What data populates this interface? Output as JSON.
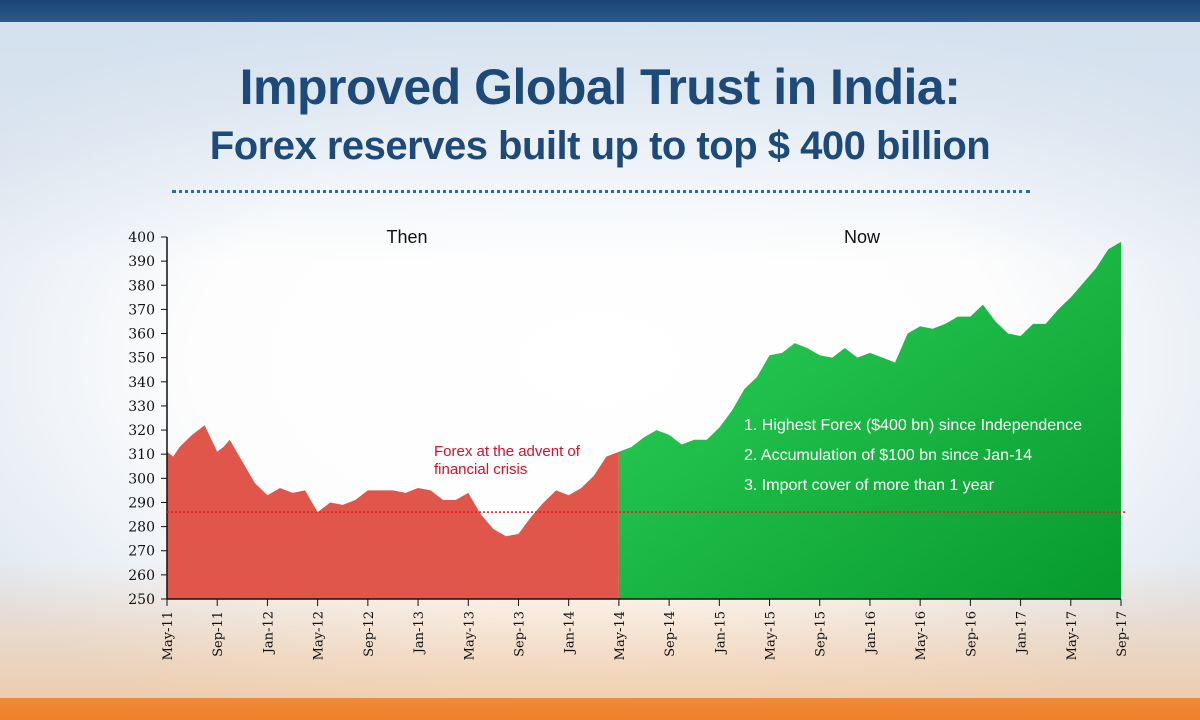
{
  "header": {
    "title_line1": "Improved Global Trust in India:",
    "title_line2": "Forex reserves built up to top  $ 400 billion"
  },
  "colors": {
    "then_area": "#e0564b",
    "now_area_light": "#2ed35a",
    "now_area_dark": "#079a2e",
    "reference_line": "#e01e2a",
    "annotation_text": "#d8102a",
    "title": "#1d4a78"
  },
  "chart_data": {
    "type": "area",
    "title": "Improved Global Trust in India: Forex reserves built up to top $ 400 billion",
    "xlabel": "",
    "ylabel": "",
    "ylim": [
      250,
      400
    ],
    "yticks": [
      250,
      260,
      270,
      280,
      290,
      300,
      310,
      320,
      330,
      340,
      350,
      360,
      370,
      380,
      390,
      400
    ],
    "xticks": [
      "May-11",
      "Sep-11",
      "Jan-12",
      "May-12",
      "Sep-12",
      "Jan-13",
      "May-13",
      "Sep-13",
      "Jan-14",
      "May-14",
      "Sep-14",
      "Jan-15",
      "May-15",
      "Sep-15",
      "Jan-16",
      "May-16",
      "Sep-16",
      "Jan-17",
      "May-17",
      "Sep-17"
    ],
    "series": [
      {
        "name": "Then",
        "label": "Then",
        "x": [
          0,
          0.5,
          1,
          2,
          3,
          4,
          4.5,
          5,
          6,
          7,
          8,
          9,
          10,
          11,
          12,
          13,
          14,
          15,
          16,
          17,
          18,
          19,
          20,
          21,
          22,
          23,
          24,
          25,
          26,
          27,
          28,
          29,
          30,
          31,
          32,
          33,
          34,
          35,
          36
        ],
        "values": [
          311,
          309,
          313,
          318,
          322,
          311,
          313,
          316,
          307,
          298,
          293,
          296,
          294,
          295,
          286,
          290,
          289,
          291,
          295,
          295,
          295,
          294,
          296,
          295,
          291,
          291,
          294,
          285,
          279,
          276,
          277,
          284,
          290,
          295,
          293,
          296,
          301,
          309,
          311
        ]
      },
      {
        "name": "Now",
        "label": "Now",
        "x": [
          36,
          37,
          38,
          39,
          40,
          41,
          42,
          43,
          44,
          45,
          46,
          47,
          48,
          49,
          50,
          51,
          52,
          53,
          54,
          55,
          56,
          57,
          58,
          59,
          60,
          61,
          62,
          63,
          64,
          65,
          66,
          67,
          68,
          69,
          70,
          71,
          72,
          73,
          74,
          75,
          76
        ],
        "values": [
          311,
          313,
          317,
          320,
          318,
          314,
          316,
          316,
          321,
          328,
          337,
          342,
          351,
          352,
          356,
          354,
          351,
          350,
          354,
          350,
          352,
          350,
          348,
          360,
          363,
          362,
          364,
          367,
          367,
          372,
          365,
          360,
          359,
          364,
          364,
          370,
          375,
          381,
          387,
          395,
          398
        ]
      }
    ],
    "reference_line": {
      "value": 286,
      "label_line1": "Forex at the advent of",
      "label_line2": "financial crisis"
    },
    "annotations": [
      "1. Highest Forex ($400 bn) since Independence",
      "2. Accumulation of $100 bn since Jan-14",
      "3. Import cover of more than 1 year"
    ]
  }
}
